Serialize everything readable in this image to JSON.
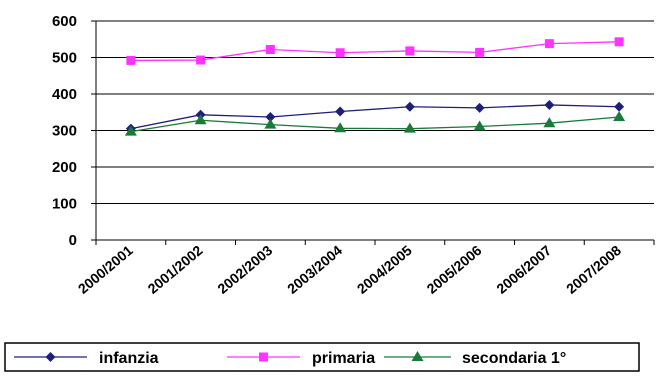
{
  "chart_data": {
    "type": "line",
    "categories": [
      "2000/2001",
      "2001/2002",
      "2002/2003",
      "2003/2004",
      "2004/2005",
      "2005/2006",
      "2006/2007",
      "2007/2008"
    ],
    "ylim": [
      0,
      600
    ],
    "yticks": [
      0,
      100,
      200,
      300,
      400,
      500,
      600
    ],
    "grid": true,
    "legend_position": "bottom",
    "series": [
      {
        "name": "infanzia",
        "color": "#1f1f7a",
        "marker": "diamond",
        "values": [
          305,
          343,
          337,
          352,
          365,
          362,
          370,
          365
        ]
      },
      {
        "name": "primaria",
        "color": "#ff33ff",
        "marker": "square",
        "values": [
          492,
          493,
          522,
          513,
          518,
          514,
          538,
          543
        ]
      },
      {
        "name": "secondaria 1°",
        "color": "#1a7a3a",
        "marker": "triangle",
        "values": [
          297,
          328,
          316,
          306,
          305,
          311,
          320,
          337
        ]
      }
    ]
  }
}
